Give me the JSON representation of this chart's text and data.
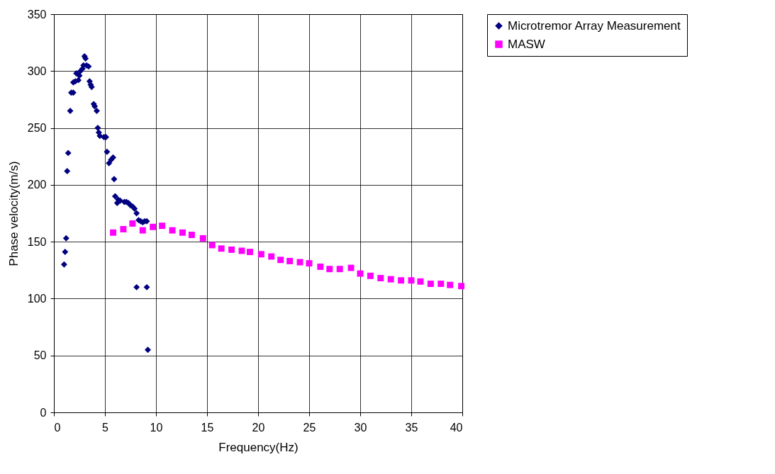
{
  "chart_data": {
    "type": "scatter",
    "xlabel": "Frequency(Hz)",
    "ylabel": "Phase velocity(m/s)",
    "xlim": [
      0,
      40
    ],
    "xticks": [
      0,
      5,
      10,
      15,
      20,
      25,
      30,
      35,
      40
    ],
    "ylim": [
      0,
      350
    ],
    "yticks": [
      0,
      50,
      100,
      150,
      200,
      250,
      300,
      350
    ],
    "grid": true,
    "legend": "right",
    "series": [
      {
        "name": "Microtremor Array Measurement",
        "color": "#000080",
        "marker": "diamond",
        "x": [
          1.0,
          1.1,
          1.2,
          1.3,
          1.4,
          1.6,
          1.7,
          1.9,
          1.9,
          2.1,
          2.2,
          2.4,
          2.5,
          2.6,
          2.8,
          2.9,
          3.0,
          3.1,
          3.2,
          3.4,
          3.5,
          3.6,
          3.7,
          3.9,
          4.0,
          4.2,
          4.3,
          4.4,
          4.5,
          4.9,
          5.1,
          5.2,
          5.4,
          5.6,
          5.8,
          5.9,
          6.0,
          6.2,
          6.3,
          6.5,
          6.9,
          7.1,
          7.3,
          7.5,
          7.7,
          7.9,
          8.1,
          8.3,
          8.5,
          8.7,
          8.9,
          9.1,
          8.1,
          9.1,
          9.2
        ],
        "values": [
          130,
          141,
          153,
          212,
          228,
          265,
          281,
          281,
          290,
          291,
          298,
          292,
          296,
          300,
          302,
          305,
          313,
          311,
          305,
          304,
          291,
          288,
          286,
          271,
          269,
          265,
          250,
          246,
          243,
          242,
          242,
          229,
          219,
          222,
          224,
          205,
          190,
          184,
          187,
          186,
          185,
          185,
          184,
          182,
          181,
          179,
          175,
          169,
          168,
          167,
          168,
          168,
          110,
          110,
          55
        ]
      },
      {
        "name": "MASW",
        "color": "#ff00ff",
        "marker": "square",
        "x": [
          5.8,
          6.8,
          7.7,
          8.7,
          9.7,
          10.6,
          11.6,
          12.6,
          13.5,
          14.6,
          15.5,
          16.4,
          17.4,
          18.4,
          19.2,
          20.3,
          21.3,
          22.2,
          23.1,
          24.1,
          25.0,
          26.1,
          27.0,
          28.0,
          29.1,
          30.0,
          31.0,
          32.0,
          33.0,
          34.0,
          35.0,
          35.9,
          36.9,
          37.9,
          38.8,
          39.9
        ],
        "values": [
          158,
          161,
          166,
          160,
          163,
          164,
          160,
          158,
          156,
          153,
          147,
          144,
          143,
          142,
          141,
          139,
          137,
          134,
          133,
          132,
          131,
          128,
          126,
          126,
          127,
          122,
          120,
          118,
          117,
          116,
          116,
          115,
          113,
          113,
          112,
          111
        ]
      }
    ]
  }
}
